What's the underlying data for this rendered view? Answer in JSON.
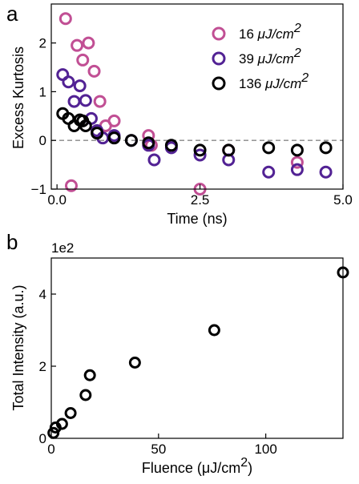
{
  "chart_data": [
    {
      "type": "scatter",
      "panel_label": "a",
      "xlabel": "Time (ns)",
      "ylabel": "Excess Kurtosis",
      "xlim": [
        -0.1,
        5.0
      ],
      "ylim": [
        -1.0,
        2.8
      ],
      "xticks": [
        0.0,
        2.5,
        5.0
      ],
      "xtick_labels": [
        "0.0",
        "2.5",
        "5.0"
      ],
      "yticks": [
        -1,
        0,
        1,
        2
      ],
      "ytick_labels": [
        "−1",
        "0",
        "1",
        "2"
      ],
      "reference_line": {
        "y": 0,
        "style": "dashed",
        "color": "#888888"
      },
      "legend": {
        "placement": "top-right"
      },
      "series": [
        {
          "name": "16 μJ/cm²",
          "name_prefix": "16 ",
          "name_unit": "μJ/cm",
          "name_exp": "2",
          "color": "#c14f94",
          "points": [
            [
              0.15,
              2.5
            ],
            [
              0.25,
              -0.93
            ],
            [
              0.35,
              1.95
            ],
            [
              0.45,
              1.65
            ],
            [
              0.55,
              2.0
            ],
            [
              0.65,
              1.42
            ],
            [
              0.75,
              0.8
            ],
            [
              0.85,
              0.3
            ],
            [
              1.0,
              0.4
            ],
            [
              1.6,
              0.1
            ],
            [
              1.65,
              -0.1
            ],
            [
              2.5,
              -1.0
            ],
            [
              3.0,
              -0.2
            ],
            [
              4.2,
              -0.45
            ]
          ]
        },
        {
          "name": "39 μJ/cm²",
          "name_prefix": "39 ",
          "name_unit": "μJ/cm",
          "name_exp": "2",
          "color": "#522294",
          "points": [
            [
              0.1,
              1.35
            ],
            [
              0.2,
              1.2
            ],
            [
              0.3,
              0.8
            ],
            [
              0.4,
              1.12
            ],
            [
              0.5,
              0.82
            ],
            [
              0.6,
              0.45
            ],
            [
              0.7,
              0.2
            ],
            [
              0.8,
              0.05
            ],
            [
              1.0,
              0.1
            ],
            [
              1.3,
              0.0
            ],
            [
              1.6,
              -0.1
            ],
            [
              1.7,
              -0.4
            ],
            [
              2.0,
              -0.15
            ],
            [
              2.5,
              -0.3
            ],
            [
              3.0,
              -0.4
            ],
            [
              3.7,
              -0.65
            ],
            [
              4.2,
              -0.6
            ],
            [
              4.7,
              -0.65
            ]
          ]
        },
        {
          "name": "136 μJ/cm²",
          "name_prefix": "136 ",
          "name_unit": "μJ/cm",
          "name_exp": "2",
          "color": "#000000",
          "points": [
            [
              0.1,
              0.55
            ],
            [
              0.2,
              0.45
            ],
            [
              0.3,
              0.3
            ],
            [
              0.4,
              0.42
            ],
            [
              0.45,
              0.4
            ],
            [
              0.5,
              0.3
            ],
            [
              0.7,
              0.15
            ],
            [
              1.0,
              0.05
            ],
            [
              1.3,
              0.0
            ],
            [
              1.6,
              -0.05
            ],
            [
              2.0,
              -0.1
            ],
            [
              2.5,
              -0.2
            ],
            [
              3.0,
              -0.2
            ],
            [
              3.7,
              -0.15
            ],
            [
              4.2,
              -0.2
            ],
            [
              4.7,
              -0.15
            ]
          ]
        }
      ]
    },
    {
      "type": "scatter",
      "panel_label": "b",
      "xlabel_prefix": "Fluence (μJ/cm",
      "xlabel_exp": "2",
      "xlabel_suffix": ")",
      "ylabel": "Total Intensity (a.u.)",
      "scale_label": "1e2",
      "xlim": [
        0,
        136
      ],
      "ylim": [
        0,
        500
      ],
      "xticks": [
        0,
        50,
        100
      ],
      "xtick_labels": [
        "0",
        "50",
        "100"
      ],
      "yticks": [
        0,
        200,
        400
      ],
      "ytick_labels": [
        "0",
        "2",
        "4"
      ],
      "series": [
        {
          "color": "#000000",
          "points": [
            [
              1,
              15
            ],
            [
              2,
              30
            ],
            [
              5,
              40
            ],
            [
              9,
              70
            ],
            [
              16,
              120
            ],
            [
              18,
              175
            ],
            [
              39,
              210
            ],
            [
              76,
              300
            ],
            [
              136,
              460
            ]
          ]
        }
      ]
    }
  ]
}
